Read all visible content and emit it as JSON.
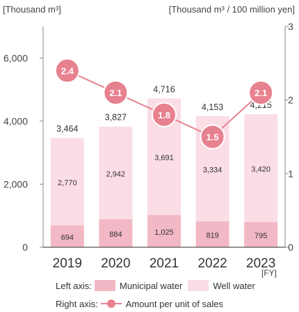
{
  "chart_data": {
    "type": "bar",
    "categories": [
      "2019",
      "2020",
      "2021",
      "2022",
      "2023"
    ],
    "y_left_label": "[Thousand m³]",
    "y_right_label": "[Thousand m³ / 100 million yen]",
    "x_unit": "[FY]",
    "y_left_ticks": [
      "0",
      "2,000",
      "4,000",
      "6,000"
    ],
    "y_right_ticks": [
      "0",
      "1",
      "2",
      "3"
    ],
    "ylim_left": [
      0,
      7000
    ],
    "ylim_right": [
      0,
      3
    ],
    "series": [
      {
        "name": "Municipal water",
        "type": "bar",
        "stack": "total",
        "color": "#f2b8c5",
        "values": [
          694,
          884,
          1025,
          819,
          795
        ],
        "labels": [
          "694",
          "884",
          "1,025",
          "819",
          "795"
        ]
      },
      {
        "name": "Well water",
        "type": "bar",
        "stack": "total",
        "color": "#fadde5",
        "values": [
          2770,
          2942,
          3691,
          3334,
          3420
        ],
        "labels": [
          "2,770",
          "2,942",
          "3,691",
          "3,334",
          "3,420"
        ]
      },
      {
        "name": "Amount per unit of sales",
        "type": "line",
        "axis": "right",
        "color": "#e8818f",
        "values": [
          2.4,
          2.1,
          1.8,
          1.5,
          2.1
        ],
        "labels": [
          "2.4",
          "2.1",
          "1.8",
          "1.5",
          "2.1"
        ]
      }
    ],
    "totals": [
      3464,
      3827,
      4716,
      4153,
      4215
    ],
    "total_labels": [
      "3,464",
      "3,827",
      "4,716",
      "4,153",
      "4,215"
    ]
  },
  "legend": {
    "left_axis_label": "Left axis:",
    "municipal_label": "Municipal water",
    "well_label": "Well water",
    "right_axis_label": "Right axis:",
    "line_label": "Amount per unit of sales"
  }
}
